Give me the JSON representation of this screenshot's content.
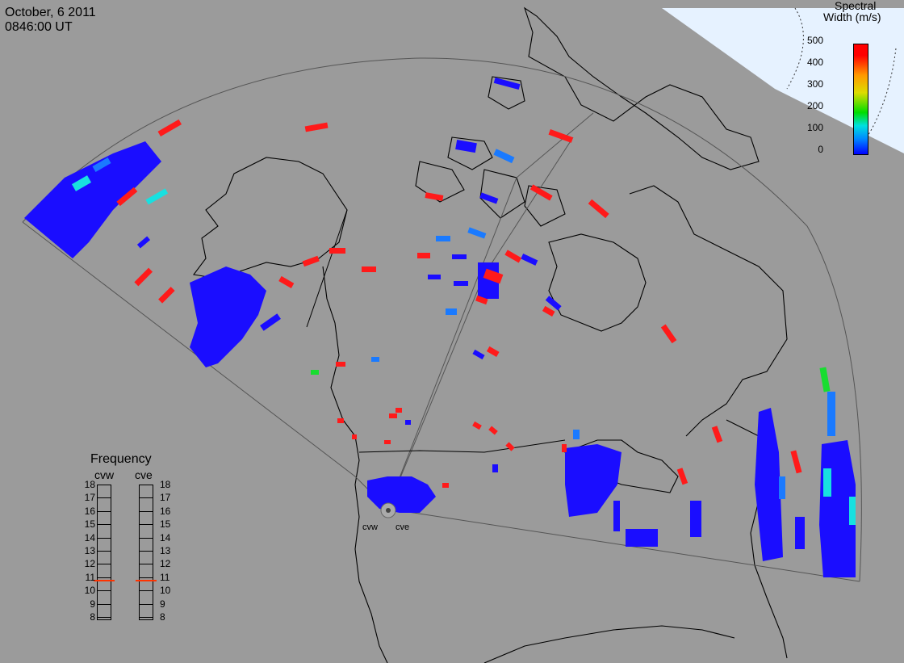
{
  "header": {
    "date": "October, 6 2011",
    "time": "0846:00 UT"
  },
  "colorbar": {
    "title_line1": "Spectral",
    "title_line2": "Width (m/s)",
    "ticks": [
      "500",
      "400",
      "300",
      "200",
      "100",
      "0"
    ]
  },
  "frequency": {
    "title": "Frequency",
    "radar1": "cvw",
    "radar2": "cve",
    "ticks": [
      "18",
      "17",
      "16",
      "15",
      "14",
      "13",
      "12",
      "11",
      "10",
      "9",
      "8"
    ],
    "cvw_mhz": 10.8,
    "cve_mhz": 10.8,
    "marker_color": "#ff3300"
  },
  "stations": {
    "west": "cvw",
    "east": "cve"
  },
  "colors": {
    "background": "#9b9b9b",
    "low": "#1a0dff",
    "mid": "#1a7aff",
    "cyan": "#18e0e0",
    "green": "#18dd30",
    "high": "#ff1a1a",
    "ice": "#e6f2ff"
  }
}
